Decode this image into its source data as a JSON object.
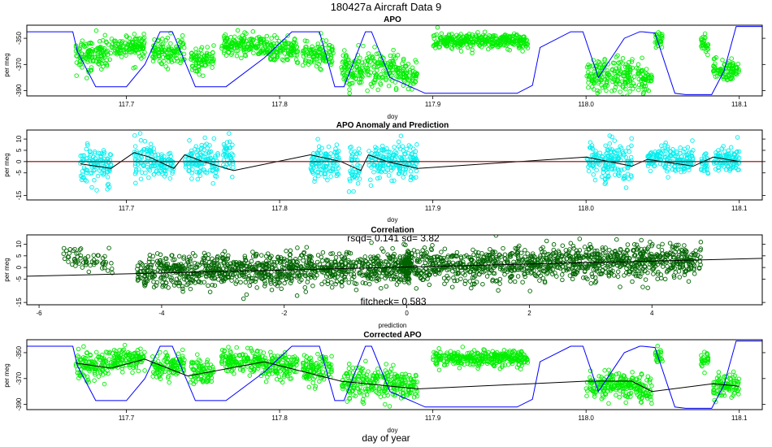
{
  "figure": {
    "title": "180427a   Aircraft Data 9",
    "bottom_label": "day of year"
  },
  "colors": {
    "apo": "#00ee00",
    "track": "#0000ff",
    "anomaly": "#00eeee",
    "prediction": "#000000",
    "baseline": "#8b0000",
    "correlation": "#006400",
    "fit": "#000000"
  },
  "chart_data": [
    {
      "id": "apo",
      "type": "scatter",
      "title": "APO",
      "xlabel": "doy",
      "ylabel": "per meg",
      "xlim": [
        117.635,
        118.115
      ],
      "ylim": [
        -394,
        -340
      ],
      "xticks": [
        117.7,
        117.8,
        117.9,
        118.0,
        118.1
      ],
      "xtick_labels": [
        "117.7",
        "117.8",
        "117.9",
        "118.0",
        "118.1"
      ],
      "yticks": [
        -350,
        -370,
        -390
      ],
      "ytick_labels": [
        "-350",
        "-370",
        "-390"
      ],
      "series": [
        {
          "name": "APO",
          "color": "#00ee00",
          "segments": [
            {
              "x0": 117.667,
              "x1": 117.69,
              "mean": -362,
              "sd": 6
            },
            {
              "x0": 117.69,
              "x1": 117.712,
              "mean": -356,
              "sd": 4
            },
            {
              "x0": 117.717,
              "x1": 117.738,
              "mean": -360,
              "sd": 5
            },
            {
              "x0": 117.742,
              "x1": 117.757,
              "mean": -366,
              "sd": 5
            },
            {
              "x0": 117.762,
              "x1": 117.79,
              "mean": -355,
              "sd": 4
            },
            {
              "x0": 117.79,
              "x1": 117.812,
              "mean": -358,
              "sd": 5
            },
            {
              "x0": 117.815,
              "x1": 117.835,
              "mean": -362,
              "sd": 5
            },
            {
              "x0": 117.84,
              "x1": 117.88,
              "mean": -374,
              "sd": 6
            },
            {
              "x0": 117.88,
              "x1": 117.89,
              "mean": -378,
              "sd": 5
            },
            {
              "x0": 117.9,
              "x1": 117.962,
              "mean": -352,
              "sd": 3
            },
            {
              "x0": 118.0,
              "x1": 118.035,
              "mean": -378,
              "sd": 6
            },
            {
              "x0": 118.035,
              "x1": 118.043,
              "mean": -381,
              "sd": 5
            },
            {
              "x0": 118.045,
              "x1": 118.05,
              "mean": -350,
              "sd": 3
            },
            {
              "x0": 118.075,
              "x1": 118.08,
              "mean": -353,
              "sd": 3
            },
            {
              "x0": 118.083,
              "x1": 118.1,
              "mean": -375,
              "sd": 4
            }
          ]
        },
        {
          "name": "Aircraft track",
          "color": "#0000ff",
          "type": "line",
          "x": [
            117.635,
            117.665,
            117.668,
            117.68,
            117.7,
            117.712,
            117.722,
            117.73,
            117.745,
            117.755,
            117.765,
            117.79,
            117.808,
            117.826,
            117.836,
            117.842,
            117.856,
            117.86,
            117.872,
            117.895,
            117.955,
            117.965,
            117.97,
            117.99,
            117.998,
            118.008,
            118.025,
            118.035,
            118.037,
            118.045,
            118.058,
            118.065,
            118.082,
            118.09,
            118.098,
            118.115
          ],
          "y": [
            -345,
            -345,
            -360,
            -387,
            -387,
            -370,
            -345,
            -345,
            -387,
            -387,
            -387,
            -365,
            -345,
            -345,
            -387,
            -387,
            -345,
            -345,
            -380,
            -392,
            -392,
            -386,
            -357,
            -345,
            -345,
            -380,
            -350,
            -345,
            -345,
            -346,
            -392,
            -393,
            -393,
            -375,
            -341,
            -341
          ]
        }
      ]
    },
    {
      "id": "anomaly",
      "type": "scatter",
      "title": "APO Anomaly and Prediction",
      "xlabel": "doy",
      "ylabel": "per meg",
      "xlim": [
        117.635,
        118.115
      ],
      "ylim": [
        -17,
        14
      ],
      "xticks": [
        117.7,
        117.8,
        117.9,
        118.0,
        118.1
      ],
      "xtick_labels": [
        "117.7",
        "117.8",
        "117.9",
        "118.0",
        "118.1"
      ],
      "yticks": [
        10,
        5,
        0,
        -5,
        -15
      ],
      "ytick_labels": [
        "10",
        "5",
        "0",
        "-5",
        "-15"
      ],
      "series": [
        {
          "name": "Anomaly",
          "color": "#00eeee",
          "segments": [
            {
              "x0": 117.67,
              "x1": 117.69,
              "mean": -2,
              "sd": 4
            },
            {
              "x0": 117.705,
              "x1": 117.718,
              "mean": 2,
              "sd": 4
            },
            {
              "x0": 117.718,
              "x1": 117.731,
              "mean": -1,
              "sd": 3
            },
            {
              "x0": 117.738,
              "x1": 117.755,
              "mean": 1,
              "sd": 4
            },
            {
              "x0": 117.755,
              "x1": 117.76,
              "mean": -1,
              "sd": 3
            },
            {
              "x0": 117.763,
              "x1": 117.77,
              "mean": 3,
              "sd": 4
            },
            {
              "x0": 117.82,
              "x1": 117.84,
              "mean": -1,
              "sd": 4
            },
            {
              "x0": 117.845,
              "x1": 117.853,
              "mean": -3,
              "sd": 5
            },
            {
              "x0": 117.858,
              "x1": 117.89,
              "mean": 0,
              "sd": 4
            },
            {
              "x0": 118.0,
              "x1": 118.03,
              "mean": 0,
              "sd": 4
            },
            {
              "x0": 118.04,
              "x1": 118.07,
              "mean": 1,
              "sd": 3
            },
            {
              "x0": 118.075,
              "x1": 118.08,
              "mean": -1,
              "sd": 2
            },
            {
              "x0": 118.083,
              "x1": 118.1,
              "mean": 1,
              "sd": 3
            }
          ]
        },
        {
          "name": "Prediction",
          "color": "#000000",
          "type": "line",
          "x": [
            117.67,
            117.68,
            117.69,
            117.705,
            117.715,
            117.731,
            117.738,
            117.75,
            117.77,
            117.82,
            117.84,
            117.853,
            117.858,
            117.87,
            117.89,
            118.0,
            118.03,
            118.04,
            118.06,
            118.07,
            118.083,
            118.1
          ],
          "y": [
            -1,
            -2,
            -3,
            4,
            2,
            -3,
            3,
            0,
            -4,
            3,
            0,
            -4,
            3,
            0,
            -3,
            2,
            -2,
            1,
            -1,
            -2,
            2,
            0
          ]
        },
        {
          "name": "Baseline",
          "color": "#8b0000",
          "type": "line",
          "x": [
            117.635,
            118.115
          ],
          "y": [
            0,
            0
          ]
        }
      ]
    },
    {
      "id": "correlation",
      "type": "scatter",
      "title": "Correlation",
      "xlabel": "prediction",
      "ylabel": "per meg",
      "xlim": [
        -6.2,
        5.8
      ],
      "ylim": [
        -16,
        14
      ],
      "xticks": [
        -6,
        -4,
        -2,
        0,
        2,
        4
      ],
      "xtick_labels": [
        "-6",
        "-4",
        "-2",
        "0",
        "2",
        "4"
      ],
      "yticks": [
        10,
        5,
        0,
        -5,
        -15
      ],
      "ytick_labels": [
        "10",
        "5",
        "0",
        "-5",
        "-15"
      ],
      "annotations": [
        "rsqd= 0.141 sd= 3.82",
        "fitcheck= 0.583"
      ],
      "fit_line": {
        "slope": 0.64,
        "intercept": 0.2
      },
      "series": [
        {
          "name": "Anomaly vs prediction",
          "color": "#006400",
          "clusters": [
            {
              "x0": -5.6,
              "x1": -4.8,
              "n": 60,
              "slope": -4.5,
              "intercept": -20,
              "sd": 2.5
            },
            {
              "x0": -4.4,
              "x1": 4.8,
              "n": 2100,
              "slope": 0.6,
              "intercept": 0.2,
              "sd": 3.5
            },
            {
              "x0": -0.05,
              "x1": 0.05,
              "n": 60,
              "slope": 0,
              "intercept": 0,
              "sd": 4
            }
          ]
        }
      ]
    },
    {
      "id": "corrected",
      "type": "scatter",
      "title": "Corrected APO",
      "xlabel": "doy",
      "ylabel": "per meg",
      "xlim": [
        117.635,
        118.115
      ],
      "ylim": [
        -394,
        -340
      ],
      "xticks": [
        117.7,
        117.8,
        117.9,
        118.0,
        118.1
      ],
      "xtick_labels": [
        "117.7",
        "117.8",
        "117.9",
        "118.0",
        "118.1"
      ],
      "yticks": [
        -350,
        -370,
        -390
      ],
      "ytick_labels": [
        "-350",
        "-370",
        "-390"
      ],
      "series": [
        {
          "name": "Corrected APO",
          "color": "#00ee00",
          "segments": [
            {
              "x0": 117.667,
              "x1": 117.69,
              "mean": -360,
              "sd": 5
            },
            {
              "x0": 117.69,
              "x1": 117.712,
              "mean": -355,
              "sd": 4
            },
            {
              "x0": 117.717,
              "x1": 117.738,
              "mean": -360,
              "sd": 5
            },
            {
              "x0": 117.742,
              "x1": 117.757,
              "mean": -365,
              "sd": 5
            },
            {
              "x0": 117.762,
              "x1": 117.79,
              "mean": -356,
              "sd": 4
            },
            {
              "x0": 117.79,
              "x1": 117.812,
              "mean": -360,
              "sd": 5
            },
            {
              "x0": 117.815,
              "x1": 117.835,
              "mean": -363,
              "sd": 5
            },
            {
              "x0": 117.84,
              "x1": 117.88,
              "mean": -373,
              "sd": 6
            },
            {
              "x0": 117.88,
              "x1": 117.89,
              "mean": -377,
              "sd": 5
            },
            {
              "x0": 117.9,
              "x1": 117.962,
              "mean": -354,
              "sd": 3
            },
            {
              "x0": 118.0,
              "x1": 118.035,
              "mean": -375,
              "sd": 5
            },
            {
              "x0": 118.035,
              "x1": 118.043,
              "mean": -380,
              "sd": 5
            },
            {
              "x0": 118.045,
              "x1": 118.05,
              "mean": -352,
              "sd": 3
            },
            {
              "x0": 118.075,
              "x1": 118.08,
              "mean": -355,
              "sd": 3
            },
            {
              "x0": 118.083,
              "x1": 118.1,
              "mean": -376,
              "sd": 4
            }
          ]
        },
        {
          "name": "Aircraft track",
          "color": "#0000ff",
          "type": "line",
          "x": [
            117.635,
            117.665,
            117.668,
            117.68,
            117.7,
            117.712,
            117.722,
            117.73,
            117.745,
            117.755,
            117.765,
            117.79,
            117.808,
            117.826,
            117.836,
            117.842,
            117.856,
            117.86,
            117.872,
            117.895,
            117.955,
            117.965,
            117.97,
            117.99,
            117.998,
            118.008,
            118.025,
            118.035,
            118.037,
            118.045,
            118.058,
            118.065,
            118.082,
            118.09,
            118.098,
            118.115
          ],
          "y": [
            -345,
            -345,
            -360,
            -387,
            -387,
            -370,
            -345,
            -345,
            -387,
            -387,
            -387,
            -365,
            -345,
            -345,
            -387,
            -387,
            -345,
            -345,
            -380,
            -392,
            -392,
            -386,
            -357,
            -345,
            -345,
            -380,
            -350,
            -345,
            -345,
            -346,
            -392,
            -393,
            -393,
            -375,
            -341,
            -341
          ]
        },
        {
          "name": "Corrected mean",
          "color": "#000000",
          "type": "line",
          "x": [
            117.667,
            117.69,
            117.712,
            117.74,
            117.79,
            117.84,
            117.89,
            118.0,
            118.03,
            118.043,
            118.083,
            118.1
          ],
          "y": [
            -358,
            -362,
            -355,
            -368,
            -357,
            -372,
            -378,
            -372,
            -372,
            -380,
            -374,
            -376
          ]
        }
      ]
    }
  ]
}
